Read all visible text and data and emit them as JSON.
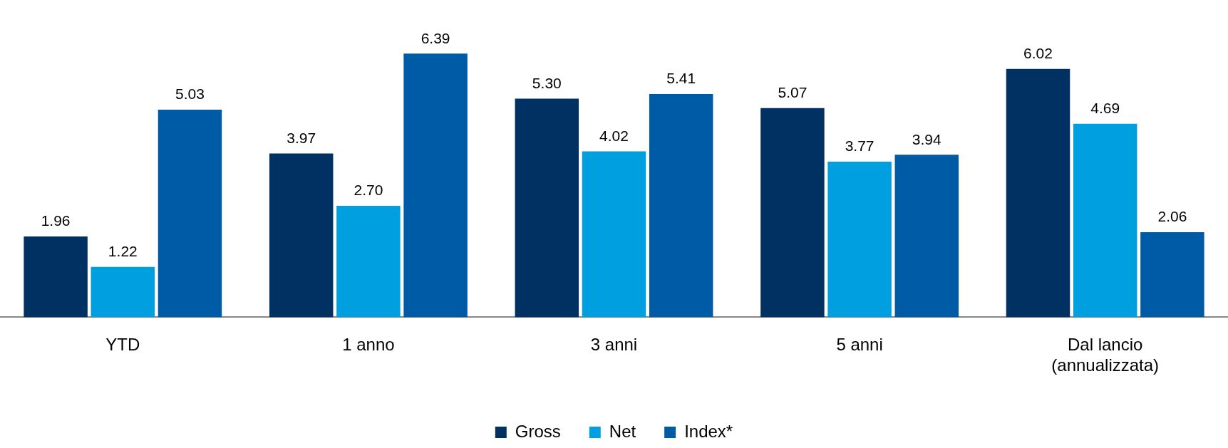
{
  "chart_data": {
    "type": "bar",
    "categories": [
      "YTD",
      "1 anno",
      "3 anni",
      "5 anni",
      "Dal lancio\n(annualizzata)"
    ],
    "series": [
      {
        "name": "Gross",
        "color": "#003163",
        "values": [
          1.96,
          3.97,
          5.3,
          5.07,
          6.02
        ],
        "value_labels": [
          "1.96",
          "3.97",
          "5.30",
          "5.07",
          "6.02"
        ]
      },
      {
        "name": "Net",
        "color": "#00a0e0",
        "values": [
          1.22,
          2.7,
          4.02,
          3.77,
          4.69
        ],
        "value_labels": [
          "1.22",
          "2.70",
          "4.02",
          "3.77",
          "4.69"
        ]
      },
      {
        "name": "Index*",
        "color": "#005ba6",
        "values": [
          5.03,
          6.39,
          5.41,
          3.94,
          2.06
        ],
        "value_labels": [
          "5.03",
          "6.39",
          "5.41",
          "3.94",
          "2.06"
        ]
      }
    ],
    "grid": false,
    "legend": "bottom",
    "tick_labels": "x"
  }
}
